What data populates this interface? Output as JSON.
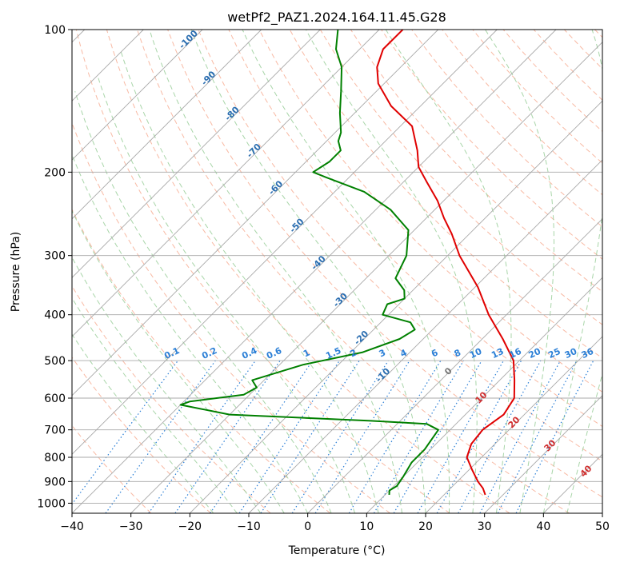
{
  "chart_data": {
    "type": "skew-t",
    "title": "wetPf2_PAZ1.2024.164.11.45.G28",
    "xlabel": "Temperature (°C)",
    "ylabel": "Pressure (hPa)",
    "xlim": [
      -40,
      50
    ],
    "ylim": [
      1050,
      100
    ],
    "x_ticks": [
      -40,
      -30,
      -20,
      -10,
      0,
      10,
      20,
      30,
      40,
      50
    ],
    "x_tick_labels": [
      "−40",
      "−30",
      "−20",
      "−10",
      "0",
      "10",
      "20",
      "30",
      "40",
      "50"
    ],
    "y_ticks": [
      100,
      200,
      300,
      400,
      500,
      600,
      700,
      800,
      900,
      1000
    ],
    "y_tick_labels": [
      "100",
      "200",
      "300",
      "400",
      "500",
      "600",
      "700",
      "800",
      "900",
      "1000"
    ],
    "grid": true,
    "colors": {
      "temperature": "#e00000",
      "dewpoint": "#008000",
      "dry_adiabat": "#f6a88c",
      "moist_adiabat": "#9ed09e",
      "mixing_ratio": "#2b7fd6",
      "isotherm": "#999999"
    },
    "series": [
      {
        "name": "",
        "variable": "temperature",
        "points": [
          [
            27.0,
            960
          ],
          [
            25.5,
            930
          ],
          [
            23.5,
            900
          ],
          [
            20.5,
            850
          ],
          [
            17.5,
            800
          ],
          [
            16.0,
            750
          ],
          [
            15.5,
            700
          ],
          [
            16.5,
            650
          ],
          [
            15.5,
            600
          ],
          [
            12.5,
            550
          ],
          [
            9.0,
            500
          ],
          [
            3.5,
            450
          ],
          [
            -3.0,
            400
          ],
          [
            -9.5,
            350
          ],
          [
            -18.0,
            300
          ],
          [
            -23.0,
            270
          ],
          [
            -27.0,
            250
          ],
          [
            -31.0,
            230
          ],
          [
            -36.0,
            210
          ],
          [
            -40.0,
            195
          ],
          [
            -43.0,
            180
          ],
          [
            -48.0,
            160
          ],
          [
            -55.0,
            145
          ],
          [
            -61.0,
            130
          ],
          [
            -64.0,
            120
          ],
          [
            -66.0,
            110
          ],
          [
            -66.0,
            100
          ]
        ]
      },
      {
        "name": "",
        "variable": "dewpoint",
        "points": [
          [
            10.7,
            960
          ],
          [
            10.0,
            940
          ],
          [
            10.5,
            920
          ],
          [
            10.0,
            880
          ],
          [
            9.0,
            820
          ],
          [
            9.0,
            770
          ],
          [
            8.0,
            700
          ],
          [
            5.0,
            680
          ],
          [
            -5.0,
            670
          ],
          [
            -30.0,
            650
          ],
          [
            -40.0,
            620
          ],
          [
            -39.0,
            610
          ],
          [
            -31.0,
            590
          ],
          [
            -30.0,
            570
          ],
          [
            -32.0,
            550
          ],
          [
            -26.0,
            510
          ],
          [
            -18.0,
            480
          ],
          [
            -14.0,
            450
          ],
          [
            -13.0,
            430
          ],
          [
            -15.0,
            415
          ],
          [
            -21.0,
            400
          ],
          [
            -22.0,
            380
          ],
          [
            -20.0,
            370
          ],
          [
            -21.5,
            355
          ],
          [
            -25.0,
            335
          ],
          [
            -27.0,
            300
          ],
          [
            -31.0,
            265
          ],
          [
            -37.5,
            240
          ],
          [
            -45.0,
            220
          ],
          [
            -54.0,
            205
          ],
          [
            -57.0,
            200
          ],
          [
            -56.0,
            190
          ],
          [
            -56.0,
            180
          ],
          [
            -58.0,
            172
          ],
          [
            -59.0,
            165
          ],
          [
            -62.5,
            150
          ],
          [
            -66.0,
            135
          ],
          [
            -70.0,
            120
          ],
          [
            -74.0,
            110
          ],
          [
            -77.0,
            100
          ]
        ]
      }
    ],
    "isotherm_labels": [
      "-100",
      "-90",
      "-80",
      "-70",
      "-60",
      "-50",
      "-40",
      "-30",
      "-20",
      "-10"
    ],
    "mixing_ratio_labels": [
      "0.1",
      "0.2",
      "0.4",
      "0.6",
      "1",
      "1.5",
      "2",
      "3",
      "4",
      "6",
      "8",
      "10",
      "13",
      "16",
      "20",
      "25",
      "30",
      "36"
    ],
    "moist_adiabat_labels": [
      "0",
      "10",
      "20",
      "30",
      "40"
    ]
  }
}
